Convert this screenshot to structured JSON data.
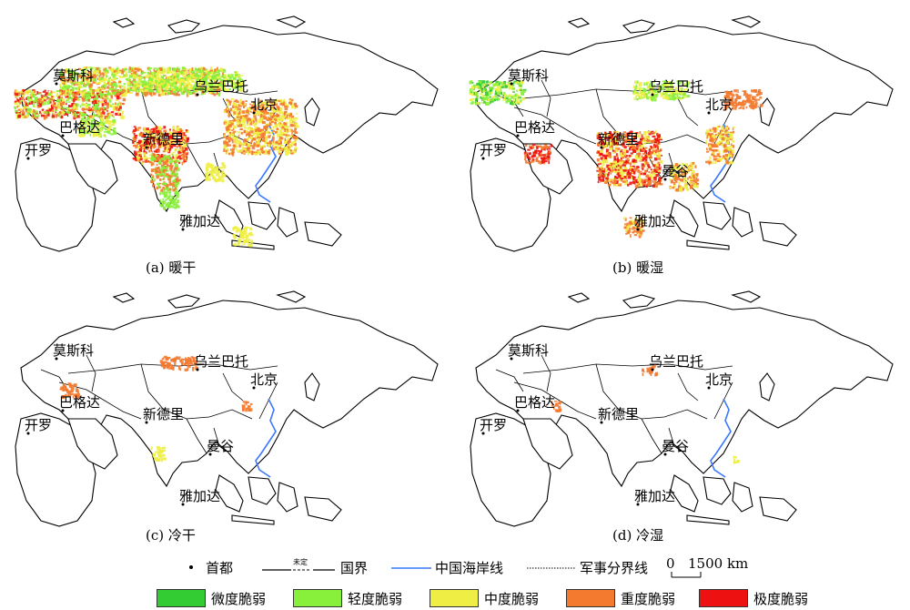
{
  "panels": [
    {
      "caption": "(a) 暖干",
      "cities": [
        "莫斯科",
        "乌兰巴托",
        "北京",
        "巴格达",
        "新德里",
        "开罗",
        "雅加达"
      ]
    },
    {
      "caption": "(b) 暖湿",
      "cities": [
        "莫斯科",
        "乌兰巴托",
        "北京",
        "巴格达",
        "新德里",
        "开罗",
        "曼谷",
        "雅加达"
      ]
    },
    {
      "caption": "(c) 冷干",
      "cities": [
        "莫斯科",
        "乌兰巴托",
        "北京",
        "巴格达",
        "新德里",
        "开罗",
        "曼谷",
        "雅加达"
      ]
    },
    {
      "caption": "(d) 冷湿",
      "cities": [
        "莫斯科",
        "乌兰巴托",
        "北京",
        "巴格达",
        "新德里",
        "开罗",
        "曼谷",
        "雅加达"
      ]
    }
  ],
  "legend": {
    "capital": "首都",
    "undetermined_mark": "未定",
    "border": "国界",
    "coastline": "中国海岸线",
    "military": "军事分界线",
    "scale_zero": "0",
    "scale_value": "1500 km",
    "classes": [
      {
        "label": "微度脆弱",
        "color": "#33cc33"
      },
      {
        "label": "轻度脆弱",
        "color": "#88f03a"
      },
      {
        "label": "中度脆弱",
        "color": "#eeee44"
      },
      {
        "label": "重度脆弱",
        "color": "#f47a30"
      },
      {
        "label": "极度脆弱",
        "color": "#ee1111"
      }
    ]
  },
  "colors": {
    "coast": "#3a78ff",
    "land": "#ffffff",
    "outline": "#000000"
  }
}
